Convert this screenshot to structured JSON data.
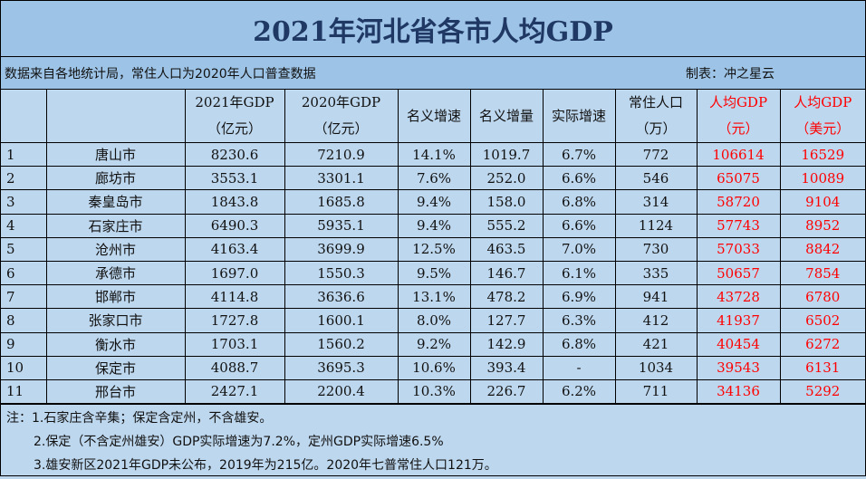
{
  "title": "2021年河北省各市人均GDP",
  "source": "数据来自各地统计局，常住人口为2020年人口普查数据",
  "author": "制表：冲之星云",
  "headers": [
    {
      "l1": "",
      "l2": ""
    },
    {
      "l1": "",
      "l2": ""
    },
    {
      "l1": "2021年GDP",
      "l2": "（亿元）"
    },
    {
      "l1": "2020年GDP",
      "l2": "（亿元）"
    },
    {
      "l1": "名义增速",
      "l2": ""
    },
    {
      "l1": "名义增量",
      "l2": ""
    },
    {
      "l1": "实际增速",
      "l2": ""
    },
    {
      "l1": "常住人口",
      "l2": "（万）"
    },
    {
      "l1": "人均GDP",
      "l2": "（元）"
    },
    {
      "l1": "人均GDP",
      "l2": "（美元）"
    }
  ],
  "rows": [
    [
      "1",
      "唐山市",
      "8230.6",
      "7210.9",
      "14.1%",
      "1019.7",
      "6.7%",
      "772",
      "106614",
      "16529"
    ],
    [
      "2",
      "廊坊市",
      "3553.1",
      "3301.1",
      "7.6%",
      "252.0",
      "6.6%",
      "546",
      "65075",
      "10089"
    ],
    [
      "3",
      "秦皇岛市",
      "1843.8",
      "1685.8",
      "9.4%",
      "158.0",
      "6.8%",
      "314",
      "58720",
      "9104"
    ],
    [
      "4",
      "石家庄市",
      "6490.3",
      "5935.1",
      "9.4%",
      "555.2",
      "6.6%",
      "1124",
      "57743",
      "8952"
    ],
    [
      "5",
      "沧州市",
      "4163.4",
      "3699.9",
      "12.5%",
      "463.5",
      "7.0%",
      "730",
      "57033",
      "8842"
    ],
    [
      "6",
      "承德市",
      "1697.0",
      "1550.3",
      "9.5%",
      "146.7",
      "6.1%",
      "335",
      "50657",
      "7854"
    ],
    [
      "7",
      "邯郸市",
      "4114.8",
      "3636.6",
      "13.1%",
      "478.2",
      "6.9%",
      "941",
      "43728",
      "6780"
    ],
    [
      "8",
      "张家口市",
      "1727.8",
      "1600.1",
      "8.0%",
      "127.7",
      "6.3%",
      "412",
      "41937",
      "6502"
    ],
    [
      "9",
      "衡水市",
      "1703.1",
      "1560.2",
      "9.2%",
      "142.9",
      "6.8%",
      "421",
      "40454",
      "6272"
    ],
    [
      "10",
      "保定市",
      "4088.7",
      "3695.3",
      "10.6%",
      "393.4",
      "-",
      "1034",
      "39543",
      "6131"
    ],
    [
      "11",
      "邢台市",
      "2427.1",
      "2200.4",
      "10.3%",
      "226.7",
      "6.2%",
      "711",
      "34136",
      "5292"
    ]
  ],
  "notes": [
    "注：1.石家庄含辛集；保定含定州，不含雄安。",
    "2.保定（不含定州雄安）GDP实际增速为7.2%，定州GDP实际增速6.5%",
    "3.雄安新区2021年GDP未公布，2019年为215亿。2020年七普常住人口121万。"
  ],
  "colors": {
    "title_bg": "#9dc3e6",
    "table_bg": "#bdd7ee",
    "title_text": "#1f3864",
    "highlight": "#ff0000"
  }
}
